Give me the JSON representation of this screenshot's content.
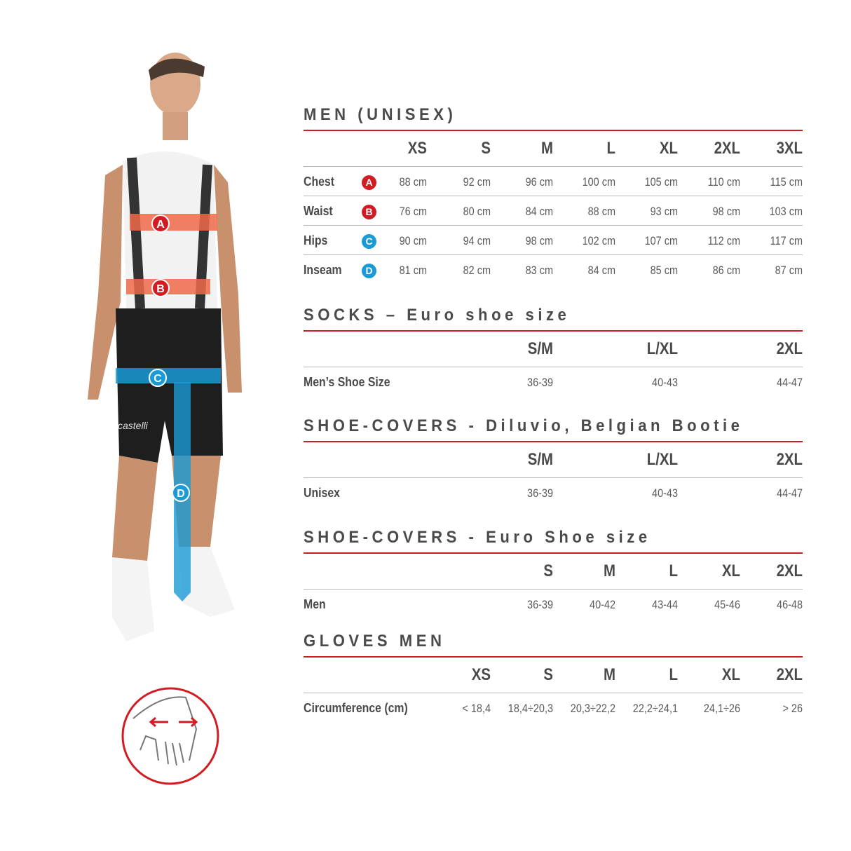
{
  "colors": {
    "accent_red": "#d01c22",
    "badge_red": "#d01c22",
    "badge_blue": "#1a9ad6",
    "text": "#4a4a4a"
  },
  "illustration": {
    "markers": [
      "A",
      "B",
      "C",
      "D"
    ],
    "logo_text": "castelli",
    "hand_icon": "hand-wrist-measure-icon"
  },
  "sections": [
    {
      "title": "MEN (UNISEX)",
      "headers": [
        "XS",
        "S",
        "M",
        "L",
        "XL",
        "2XL",
        "3XL"
      ],
      "rows": [
        {
          "label": "Chest",
          "badge": "A",
          "badge_color": "#d01c22",
          "values": [
            "88 cm",
            "92 cm",
            "96 cm",
            "100 cm",
            "105 cm",
            "110 cm",
            "115 cm"
          ]
        },
        {
          "label": "Waist",
          "badge": "B",
          "badge_color": "#d01c22",
          "values": [
            "76 cm",
            "80 cm",
            "84 cm",
            "88 cm",
            "93 cm",
            "98 cm",
            "103 cm"
          ]
        },
        {
          "label": "Hips",
          "badge": "C",
          "badge_color": "#1a9ad6",
          "values": [
            "90 cm",
            "94 cm",
            "98 cm",
            "102 cm",
            "107 cm",
            "112 cm",
            "117 cm"
          ]
        },
        {
          "label": "Inseam",
          "badge": "D",
          "badge_color": "#1a9ad6",
          "values": [
            "81 cm",
            "82 cm",
            "83 cm",
            "84 cm",
            "85 cm",
            "86 cm",
            "87 cm"
          ]
        }
      ]
    },
    {
      "title": "SOCKS – Euro shoe size",
      "headers": [
        "S/M",
        "L/XL",
        "2XL"
      ],
      "rows": [
        {
          "label": "Men’s Shoe Size",
          "values": [
            "36-39",
            "40-43",
            "44-47"
          ]
        }
      ]
    },
    {
      "title": "SHOE-COVERS - Diluvio, Belgian Bootie",
      "headers": [
        "S/M",
        "L/XL",
        "2XL"
      ],
      "rows": [
        {
          "label": "Unisex",
          "values": [
            "36-39",
            "40-43",
            "44-47"
          ]
        }
      ]
    },
    {
      "title": "SHOE-COVERS - Euro Shoe size",
      "headers": [
        "S",
        "M",
        "L",
        "XL",
        "2XL"
      ],
      "rows": [
        {
          "label": "Men",
          "values": [
            "36-39",
            "40-42",
            "43-44",
            "45-46",
            "46-48"
          ]
        }
      ]
    },
    {
      "title": "GLOVES MEN",
      "headers": [
        "XS",
        "S",
        "M",
        "L",
        "XL",
        "2XL"
      ],
      "rows": [
        {
          "label": "Circumference (cm)",
          "values": [
            "< 18,4",
            "18,4÷20,3",
            "20,3÷22,2",
            "22,2÷24,1",
            "24,1÷26",
            "> 26"
          ]
        }
      ]
    }
  ]
}
